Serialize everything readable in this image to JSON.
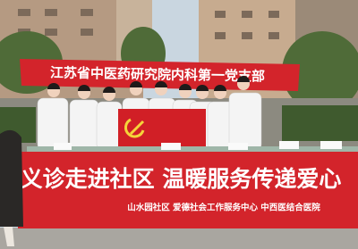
{
  "top_banner": {
    "text": "江苏省中医药研究院内科第一党支部"
  },
  "bottom_banner": {
    "headline": "义诊走进社区 温暖服务传递爱心",
    "organizers": "山水园社区  爱德社会工作服务中心  中西医结合医院"
  }
}
